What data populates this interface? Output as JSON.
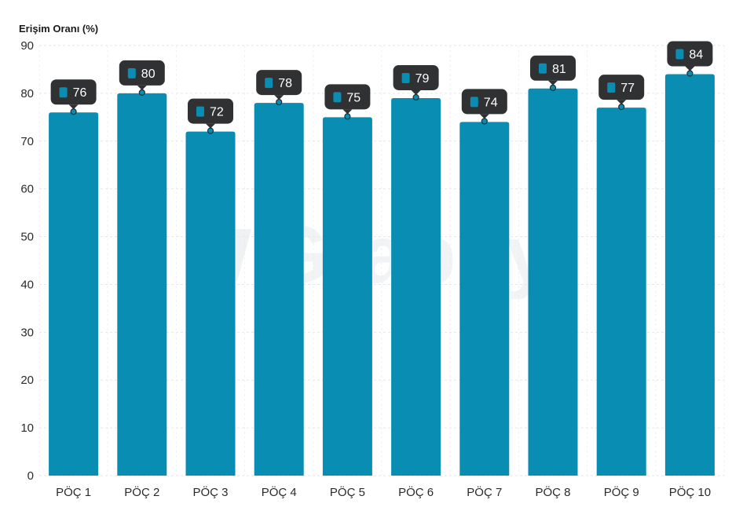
{
  "chart_data": {
    "type": "bar",
    "ylabel": "Erişim Oranı (%)",
    "categories": [
      "PÖÇ 1",
      "PÖÇ 2",
      "PÖÇ 3",
      "PÖÇ 4",
      "PÖÇ 5",
      "PÖÇ 6",
      "PÖÇ 7",
      "PÖÇ 8",
      "PÖÇ 9",
      "PÖÇ 10"
    ],
    "series": [
      {
        "values": [
          76,
          80,
          72,
          78,
          75,
          79,
          74,
          81,
          77,
          84
        ]
      }
    ],
    "data_labels": [
      "76",
      "80",
      "72",
      "78",
      "75",
      "79",
      "74",
      "81",
      "77",
      "84"
    ],
    "ylim": [
      0,
      90
    ],
    "yticks": [
      0,
      10,
      20,
      30,
      40,
      50,
      60,
      70,
      80,
      90
    ],
    "grid": true,
    "legend": false,
    "colors": {
      "bar": "#0a8db3",
      "tooltip": "#2f3133",
      "marker": "#0a8db3"
    },
    "watermark": "Graphy"
  }
}
